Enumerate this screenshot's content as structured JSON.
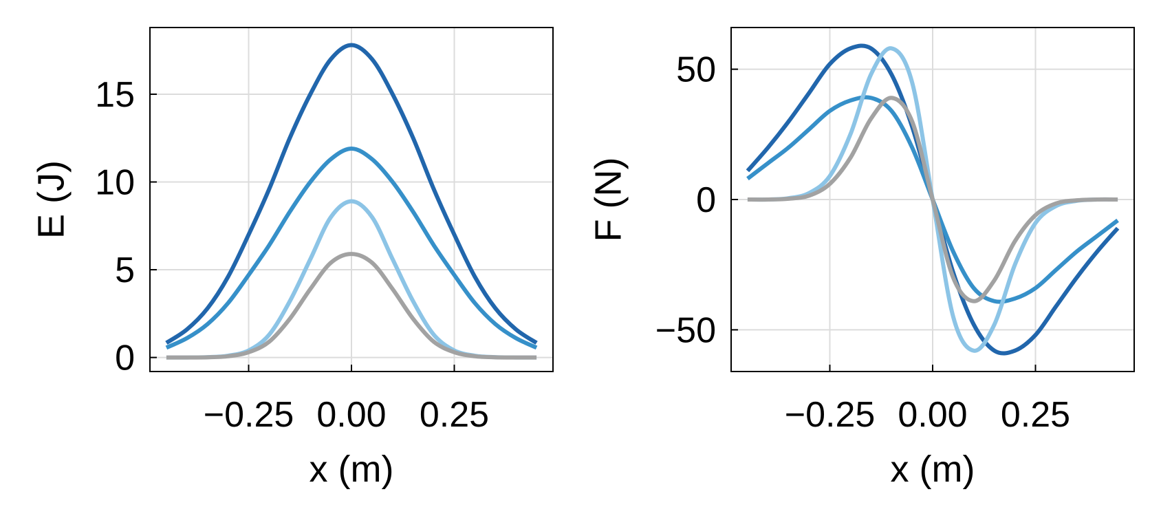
{
  "chart_data": [
    {
      "type": "line",
      "title": "",
      "xlabel": "x (m)",
      "ylabel": "E (J)",
      "xlim": [
        -0.49,
        0.49
      ],
      "ylim": [
        -0.8,
        18.8
      ],
      "xticks": [
        -0.25,
        0.0,
        0.25
      ],
      "xtick_labels": [
        "−0.25",
        "0.00",
        "0.25"
      ],
      "yticks": [
        0,
        5,
        10,
        15
      ],
      "ytick_labels": [
        "0",
        "5",
        "10",
        "15"
      ],
      "grid": true,
      "legend": "none",
      "x": [
        -0.45,
        -0.4,
        -0.35,
        -0.3,
        -0.25,
        -0.2,
        -0.15,
        -0.1,
        -0.05,
        0.0,
        0.05,
        0.1,
        0.15,
        0.2,
        0.25,
        0.3,
        0.35,
        0.4,
        0.45
      ],
      "series": [
        {
          "color": "#2166ac",
          "values": [
            0.83,
            1.6,
            2.8,
            4.6,
            7.0,
            9.6,
            12.5,
            15.0,
            17.0,
            17.8,
            17.0,
            15.0,
            12.5,
            9.6,
            7.0,
            4.6,
            2.8,
            1.6,
            0.83
          ]
        },
        {
          "color": "#3690c9",
          "values": [
            0.56,
            1.1,
            1.9,
            3.1,
            4.7,
            6.4,
            8.3,
            10.0,
            11.3,
            11.9,
            11.3,
            10.0,
            8.3,
            6.4,
            4.7,
            3.1,
            1.9,
            1.1,
            0.56
          ]
        },
        {
          "color": "#8cc4e6",
          "values": [
            0.0,
            0.0,
            0.02,
            0.1,
            0.4,
            1.3,
            3.2,
            5.6,
            8.0,
            8.9,
            8.0,
            5.6,
            3.2,
            1.3,
            0.4,
            0.1,
            0.02,
            0.0,
            0.0
          ]
        },
        {
          "color": "#a2a2a2",
          "values": [
            0.0,
            0.0,
            0.01,
            0.07,
            0.3,
            0.9,
            2.2,
            3.9,
            5.4,
            5.9,
            5.4,
            3.9,
            2.2,
            0.9,
            0.3,
            0.07,
            0.01,
            0.0,
            0.0
          ]
        }
      ]
    },
    {
      "type": "line",
      "title": "",
      "xlabel": "x (m)",
      "ylabel": "F (N)",
      "xlim": [
        -0.49,
        0.49
      ],
      "ylim": [
        -66,
        66
      ],
      "xticks": [
        -0.25,
        0.0,
        0.25
      ],
      "xtick_labels": [
        "−0.25",
        "0.00",
        "0.25"
      ],
      "yticks": [
        -50,
        0,
        50
      ],
      "ytick_labels": [
        "−50",
        "0",
        "50"
      ],
      "grid": true,
      "legend": "none",
      "x": [
        -0.45,
        -0.4,
        -0.35,
        -0.3,
        -0.25,
        -0.2,
        -0.15,
        -0.1,
        -0.05,
        0.0,
        0.05,
        0.1,
        0.15,
        0.2,
        0.25,
        0.3,
        0.35,
        0.4,
        0.45
      ],
      "series": [
        {
          "color": "#2166ac",
          "values": [
            11,
            20,
            30,
            41,
            52,
            58,
            58,
            48,
            28,
            0,
            -28,
            -48,
            -58,
            -58,
            -52,
            -41,
            -30,
            -20,
            -11
          ]
        },
        {
          "color": "#3690c9",
          "values": [
            8,
            14,
            20,
            27,
            34,
            38,
            39,
            34,
            20,
            0,
            -20,
            -34,
            -39,
            -38,
            -34,
            -27,
            -20,
            -14,
            -8
          ]
        },
        {
          "color": "#8cc4e6",
          "values": [
            0,
            0,
            0.5,
            2.5,
            9,
            25,
            48,
            58,
            45,
            0,
            -45,
            -58,
            -48,
            -25,
            -9,
            -2.5,
            -0.5,
            0,
            0
          ]
        },
        {
          "color": "#a2a2a2",
          "values": [
            0,
            0,
            0.3,
            1.5,
            6,
            16,
            31,
            39,
            30,
            0,
            -30,
            -39,
            -31,
            -16,
            -6,
            -1.5,
            -0.3,
            0,
            0
          ]
        }
      ]
    }
  ]
}
